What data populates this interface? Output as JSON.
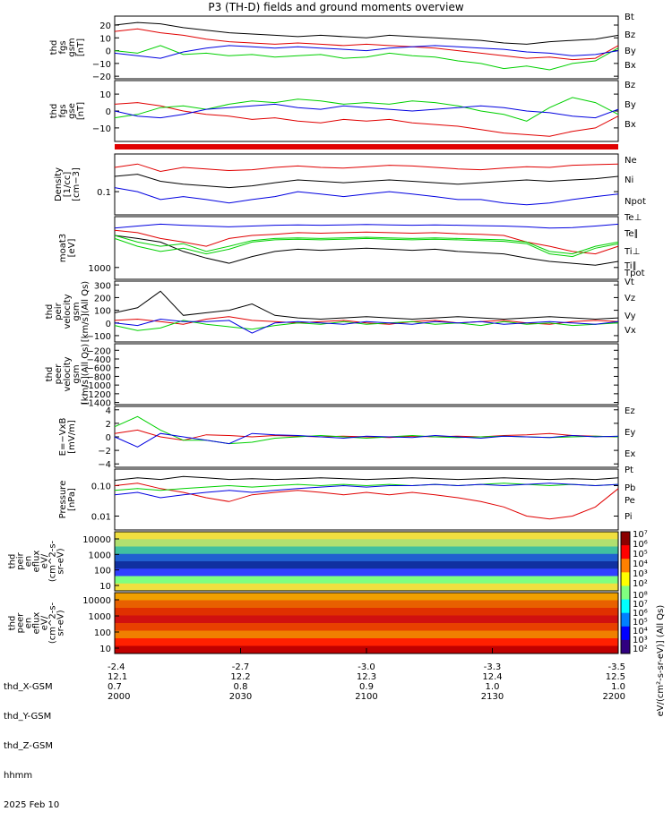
{
  "title": "P3 (TH-D) fields and ground moments overview",
  "colors": {
    "black": "#000000",
    "red": "#e00000",
    "green": "#00d000",
    "blue": "#0000e0"
  },
  "chart_data": [
    {
      "type": "line",
      "panel": "fgs_gsm",
      "ylabel_lines": [
        "thd",
        "fgs",
        "gsm",
        "[nT]"
      ],
      "yticks": [
        "20",
        "10",
        "0",
        "−10",
        "−20"
      ],
      "ylim": [
        -22,
        27
      ],
      "series": [
        {
          "name": "Bt",
          "color": "#000000",
          "values": [
            20,
            22,
            21,
            18,
            16,
            14,
            13,
            12,
            11,
            12,
            11,
            10,
            12,
            11,
            10,
            9,
            8,
            6,
            5,
            7,
            8,
            9,
            12
          ]
        },
        {
          "name": "Bz",
          "color": "#e00000",
          "values": [
            15,
            17,
            14,
            12,
            9,
            7,
            6,
            5,
            6,
            5,
            4,
            5,
            4,
            3,
            2,
            0,
            -2,
            -4,
            -6,
            -5,
            -7,
            -6,
            4
          ]
        },
        {
          "name": "By",
          "color": "#00d000",
          "values": [
            0,
            -2,
            4,
            -3,
            -2,
            -4,
            -3,
            -5,
            -4,
            -3,
            -6,
            -5,
            -2,
            -4,
            -5,
            -8,
            -10,
            -14,
            -12,
            -15,
            -10,
            -8,
            2
          ]
        },
        {
          "name": "Bx",
          "color": "#0000e0",
          "values": [
            -2,
            -4,
            -6,
            -1,
            2,
            4,
            3,
            2,
            3,
            2,
            1,
            0,
            2,
            3,
            4,
            3,
            2,
            1,
            -1,
            -2,
            -4,
            -3,
            0
          ]
        }
      ]
    },
    {
      "type": "line",
      "panel": "fgs_gse",
      "ylabel_lines": [
        "thd",
        "fgs",
        "gse",
        "[nT]"
      ],
      "yticks": [
        "10",
        "0",
        "−10"
      ],
      "ylim": [
        -18,
        18
      ],
      "series": [
        {
          "name": "Bz",
          "color": "#e00000",
          "values": [
            4,
            5,
            3,
            0,
            -2,
            -3,
            -5,
            -4,
            -6,
            -7,
            -5,
            -6,
            -5,
            -7,
            -8,
            -9,
            -11,
            -13,
            -14,
            -15,
            -12,
            -10,
            -3
          ]
        },
        {
          "name": "By",
          "color": "#00d000",
          "values": [
            -4,
            -2,
            2,
            3,
            1,
            4,
            6,
            5,
            7,
            6,
            4,
            5,
            4,
            6,
            5,
            3,
            0,
            -2,
            -6,
            2,
            8,
            5,
            -2
          ]
        },
        {
          "name": "Bx",
          "color": "#0000e0",
          "values": [
            0,
            -3,
            -4,
            -2,
            1,
            2,
            3,
            4,
            2,
            1,
            3,
            2,
            1,
            0,
            1,
            2,
            3,
            2,
            0,
            -1,
            -3,
            -4,
            1
          ]
        }
      ]
    },
    {
      "type": "line",
      "panel": "density",
      "log": true,
      "ylabel_lines": [
        "Density",
        "[1/cc]",
        "[cm−3]"
      ],
      "yticks": [
        "0.1"
      ],
      "ylim": [
        0.035,
        0.55
      ],
      "series": [
        {
          "name": "Ne",
          "color": "#e00000",
          "values": [
            0.3,
            0.35,
            0.25,
            0.3,
            0.28,
            0.26,
            0.27,
            0.3,
            0.32,
            0.3,
            0.29,
            0.31,
            0.33,
            0.32,
            0.3,
            0.28,
            0.27,
            0.29,
            0.31,
            0.3,
            0.33,
            0.34,
            0.35
          ]
        },
        {
          "name": "Ni",
          "color": "#000000",
          "values": [
            0.2,
            0.22,
            0.16,
            0.14,
            0.13,
            0.12,
            0.13,
            0.15,
            0.17,
            0.16,
            0.15,
            0.16,
            0.17,
            0.16,
            0.15,
            0.14,
            0.15,
            0.16,
            0.17,
            0.16,
            0.17,
            0.18,
            0.2
          ]
        },
        {
          "name": "Npot",
          "color": "#0000e0",
          "values": [
            0.12,
            0.1,
            0.07,
            0.08,
            0.07,
            0.06,
            0.07,
            0.08,
            0.1,
            0.09,
            0.08,
            0.09,
            0.1,
            0.09,
            0.08,
            0.07,
            0.07,
            0.06,
            0.055,
            0.06,
            0.07,
            0.08,
            0.09
          ]
        }
      ]
    },
    {
      "type": "line",
      "panel": "temperature",
      "log": true,
      "ylabel_lines": [
        "moat3",
        "[eV]"
      ],
      "yticks": [
        "1000"
      ],
      "ylim": [
        600,
        9000
      ],
      "series": [
        {
          "name": "Te⊥",
          "color": "#e00000",
          "values": [
            5000,
            4500,
            3500,
            3000,
            2500,
            3500,
            4000,
            4200,
            4500,
            4400,
            4500,
            4600,
            4500,
            4400,
            4500,
            4300,
            4200,
            4000,
            3000,
            2500,
            2000,
            1800,
            2500
          ]
        },
        {
          "name": "Te∥",
          "color": "#000000",
          "values": [
            4000,
            3500,
            3000,
            2000,
            1500,
            1200,
            1600,
            2000,
            2200,
            2100,
            2200,
            2300,
            2200,
            2100,
            2200,
            2000,
            1900,
            1800,
            1500,
            1300,
            1200,
            1100,
            1300
          ]
        },
        {
          "name": "Ti⊥",
          "color": "#00d000",
          "values": [
            4000,
            3000,
            2500,
            2800,
            2000,
            2500,
            3200,
            3500,
            3600,
            3500,
            3600,
            3700,
            3600,
            3500,
            3600,
            3500,
            3400,
            3300,
            3000,
            2000,
            1800,
            2500,
            3000
          ]
        },
        {
          "name": "Ti∥",
          "color": "#00d000",
          "values": [
            3500,
            2500,
            2000,
            2300,
            1800,
            2200,
            3000,
            3300,
            3400,
            3300,
            3400,
            3500,
            3400,
            3300,
            3400,
            3300,
            3200,
            3100,
            2800,
            1800,
            1600,
            2300,
            2800
          ]
        },
        {
          "name": "Tpot",
          "color": "#0000e0",
          "values": [
            5500,
            6000,
            6500,
            6200,
            6000,
            5800,
            6000,
            6200,
            6300,
            6200,
            6300,
            6400,
            6300,
            6200,
            6300,
            6200,
            6100,
            6000,
            5800,
            5500,
            5600,
            6000,
            6500
          ]
        }
      ]
    },
    {
      "type": "line",
      "panel": "peir_velocity",
      "ylabel_lines": [
        "thd",
        "peir",
        "velocity",
        "gsm",
        "[km/s](All Qs)"
      ],
      "yticks": [
        "300",
        "200",
        "100",
        "0",
        "−100"
      ],
      "ylim": [
        -150,
        330
      ],
      "series": [
        {
          "name": "Vt",
          "color": "#000000",
          "values": [
            80,
            120,
            250,
            60,
            80,
            100,
            150,
            60,
            40,
            30,
            40,
            50,
            40,
            30,
            40,
            50,
            40,
            30,
            40,
            50,
            40,
            30,
            40
          ]
        },
        {
          "name": "Vz",
          "color": "#e00000",
          "values": [
            20,
            30,
            10,
            -10,
            30,
            50,
            20,
            10,
            0,
            10,
            20,
            0,
            -10,
            10,
            20,
            0,
            10,
            20,
            0,
            -10,
            10,
            20,
            10
          ]
        },
        {
          "name": "Vy",
          "color": "#00d000",
          "values": [
            -20,
            -60,
            -40,
            20,
            -10,
            -30,
            -50,
            -20,
            0,
            -10,
            10,
            -10,
            0,
            10,
            -10,
            0,
            -20,
            10,
            -10,
            0,
            -20,
            -10,
            0
          ]
        },
        {
          "name": "Vx",
          "color": "#0000e0",
          "values": [
            0,
            -20,
            30,
            10,
            10,
            20,
            -80,
            0,
            10,
            0,
            -10,
            10,
            0,
            -10,
            10,
            0,
            10,
            -10,
            0,
            10,
            0,
            -10,
            10
          ]
        }
      ]
    },
    {
      "type": "line",
      "panel": "peer_velocity",
      "ylabel_lines": [
        "thd",
        "peer",
        "velocity",
        "gsm",
        "[km/s](All Qs)"
      ],
      "yticks": [
        "−200",
        "−400",
        "−600",
        "−800",
        "−1000",
        "−1200",
        "−1400"
      ],
      "ylim": [
        -1450,
        -50
      ],
      "series": [
        {
          "name": "Vt",
          "color": "#000000",
          "values": []
        },
        {
          "name": "Vz",
          "color": "#e00000",
          "values": []
        },
        {
          "name": "Vy",
          "color": "#00d000",
          "values": []
        },
        {
          "name": "Vx",
          "color": "#0000e0",
          "values": []
        }
      ]
    },
    {
      "type": "line",
      "panel": "efield",
      "ylabel_lines": [
        "E=−VxB",
        "[mV/m]"
      ],
      "yticks": [
        "4",
        "2",
        "0",
        "−2",
        "−4"
      ],
      "ylim": [
        -4.5,
        4.5
      ],
      "series": [
        {
          "name": "Ez",
          "color": "#e00000",
          "values": [
            0.5,
            1,
            0,
            -0.5,
            0.3,
            0.2,
            0,
            0.2,
            0.1,
            0,
            0.1,
            0,
            -0.1,
            0.1,
            0,
            0.1,
            0,
            0.2,
            0.3,
            0.5,
            0.2,
            0.1,
            0
          ]
        },
        {
          "name": "Ey",
          "color": "#00d000",
          "values": [
            1.5,
            3,
            1,
            -0.5,
            -0.5,
            -1,
            -0.8,
            -0.2,
            0,
            0.2,
            0,
            -0.2,
            0,
            0.2,
            0,
            -0.1,
            0,
            0.1,
            0,
            -0.1,
            0,
            0.1,
            0
          ]
        },
        {
          "name": "Ex",
          "color": "#0000e0",
          "values": [
            0,
            -1.5,
            0.5,
            0,
            -0.5,
            -1,
            0.5,
            0.3,
            0.2,
            0,
            -0.2,
            0.1,
            0,
            -0.1,
            0.2,
            0,
            -0.2,
            0.1,
            0,
            -0.1,
            0.2,
            0,
            0.1
          ]
        }
      ]
    },
    {
      "type": "line",
      "panel": "pressure",
      "log": true,
      "ylabel_lines": [
        "Pressure",
        "[nPa]"
      ],
      "yticks": [
        "0.10",
        "0.01"
      ],
      "ylim": [
        0.0035,
        0.35
      ],
      "series": [
        {
          "name": "Pt",
          "color": "#000000",
          "values": [
            0.15,
            0.18,
            0.16,
            0.2,
            0.18,
            0.16,
            0.17,
            0.16,
            0.17,
            0.18,
            0.17,
            0.16,
            0.17,
            0.18,
            0.17,
            0.16,
            0.17,
            0.18,
            0.17,
            0.16,
            0.17,
            0.16,
            0.18
          ]
        },
        {
          "name": "Pb",
          "color": "#e00000",
          "values": [
            0.1,
            0.12,
            0.08,
            0.06,
            0.04,
            0.03,
            0.05,
            0.06,
            0.07,
            0.06,
            0.05,
            0.06,
            0.05,
            0.06,
            0.05,
            0.04,
            0.03,
            0.02,
            0.01,
            0.008,
            0.01,
            0.02,
            0.08
          ]
        },
        {
          "name": "Pe",
          "color": "#00d000",
          "values": [
            0.07,
            0.08,
            0.07,
            0.08,
            0.09,
            0.1,
            0.09,
            0.1,
            0.11,
            0.1,
            0.11,
            0.1,
            0.11,
            0.1,
            0.11,
            0.1,
            0.11,
            0.12,
            0.11,
            0.1,
            0.11,
            0.1,
            0.11
          ]
        },
        {
          "name": "Pi",
          "color": "#0000e0",
          "values": [
            0.05,
            0.06,
            0.04,
            0.05,
            0.06,
            0.07,
            0.06,
            0.07,
            0.08,
            0.09,
            0.1,
            0.09,
            0.1,
            0.1,
            0.11,
            0.1,
            0.11,
            0.1,
            0.11,
            0.12,
            0.11,
            0.1,
            0.11
          ]
        }
      ]
    },
    {
      "type": "heatmap",
      "panel": "peir_eflux",
      "ylabel_lines": [
        "thd",
        "peir",
        "en",
        "eflux",
        "eV/",
        "(cm^2-s-",
        "sr-eV)"
      ],
      "yticks": [
        "10000",
        "1000",
        "100",
        "10"
      ]
    },
    {
      "type": "heatmap",
      "panel": "peer_eflux",
      "ylabel_lines": [
        "thd",
        "peer",
        "en",
        "eflux",
        "eV/",
        "(cm^2-s-",
        "sr-eV)"
      ],
      "yticks": [
        "10000",
        "1000",
        "100",
        "10"
      ]
    }
  ],
  "colorbar": {
    "label": "[eV/(cm²-s-sr-eV)] (All Qs)",
    "ticks_top": [
      "10⁷",
      "10⁶",
      "10⁵",
      "10⁴",
      "10³",
      "10²"
    ],
    "ticks_bottom": [
      "10⁸",
      "10⁷",
      "10⁶",
      "10⁵",
      "10⁴",
      "10³",
      "10²"
    ]
  },
  "xaxis": {
    "row_labels": [
      "thd_X-GSM",
      "thd_Y-GSM",
      "thd_Z-GSM",
      "hhmm",
      "2025 Feb 10"
    ],
    "ticks": [
      {
        "x": "-2.4",
        "y": "12.1",
        "z": "0.7",
        "t": "2000"
      },
      {
        "x": "-2.7",
        "y": "12.2",
        "z": "0.8",
        "t": "2030"
      },
      {
        "x": "-3.0",
        "y": "12.3",
        "z": "0.9",
        "t": "2100"
      },
      {
        "x": "-3.3",
        "y": "12.4",
        "z": "1.0",
        "t": "2130"
      },
      {
        "x": "-3.5",
        "y": "12.5",
        "z": "1.0",
        "t": "2200"
      }
    ]
  }
}
